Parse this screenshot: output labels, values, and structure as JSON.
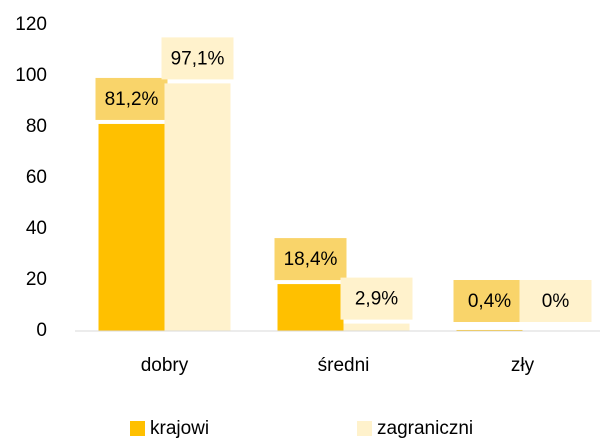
{
  "chart_data": {
    "type": "bar",
    "categories": [
      "dobry",
      "średni",
      "zły"
    ],
    "series": [
      {
        "name": "krajowi",
        "color": "#FFC000",
        "values": [
          81.2,
          18.4,
          0.4
        ],
        "value_labels": [
          "81,2%",
          "18,4%",
          "0,4%"
        ]
      },
      {
        "name": "zagraniczni",
        "color": "#FFF2CC",
        "values": [
          97.1,
          2.9,
          0
        ],
        "value_labels": [
          "97,1%",
          "2,9%",
          "0%"
        ]
      }
    ],
    "ylim": [
      0,
      120
    ],
    "yticks": [
      0,
      20,
      40,
      60,
      80,
      100,
      120
    ],
    "grid": false,
    "legend": "bottom"
  }
}
